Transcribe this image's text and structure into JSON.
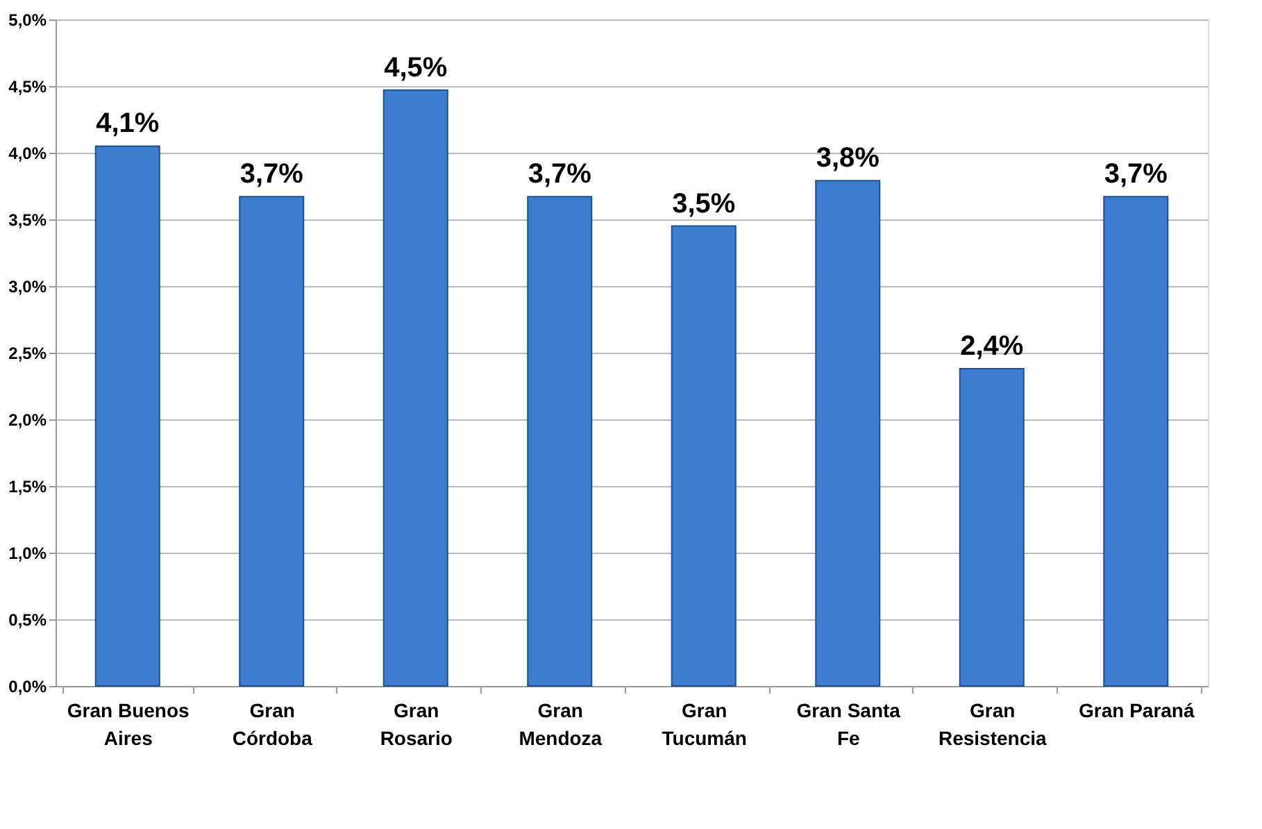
{
  "chart_data": {
    "type": "bar",
    "categories": [
      "Gran Buenos Aires",
      "Gran Córdoba",
      "Gran Rosario",
      "Gran Mendoza",
      "Gran Tucumán",
      "Gran Santa Fe",
      "Gran Resistencia",
      "Gran Paraná"
    ],
    "values": [
      4.05,
      3.67,
      4.47,
      3.67,
      3.45,
      3.79,
      2.38,
      3.67
    ],
    "value_labels": [
      "4,1%",
      "3,7%",
      "4,5%",
      "3,7%",
      "3,5%",
      "3,8%",
      "2,4%",
      "3,7%"
    ],
    "color": "#3c7dd0",
    "ylim": [
      0,
      5
    ],
    "yticks": [
      {
        "value": 0,
        "label": "0,0%"
      },
      {
        "value": 0.5,
        "label": "0,5%"
      },
      {
        "value": 1,
        "label": "1,0%"
      },
      {
        "value": 1.5,
        "label": "1,5%"
      },
      {
        "value": 2,
        "label": "2,0%"
      },
      {
        "value": 2.5,
        "label": "2,5%"
      },
      {
        "value": 3,
        "label": "3,0%"
      },
      {
        "value": 3.5,
        "label": "3,5%"
      },
      {
        "value": 4,
        "label": "4,0%"
      },
      {
        "value": 4.5,
        "label": "4,5%"
      },
      {
        "value": 5,
        "label": "5,0%"
      }
    ],
    "grid": "y"
  }
}
